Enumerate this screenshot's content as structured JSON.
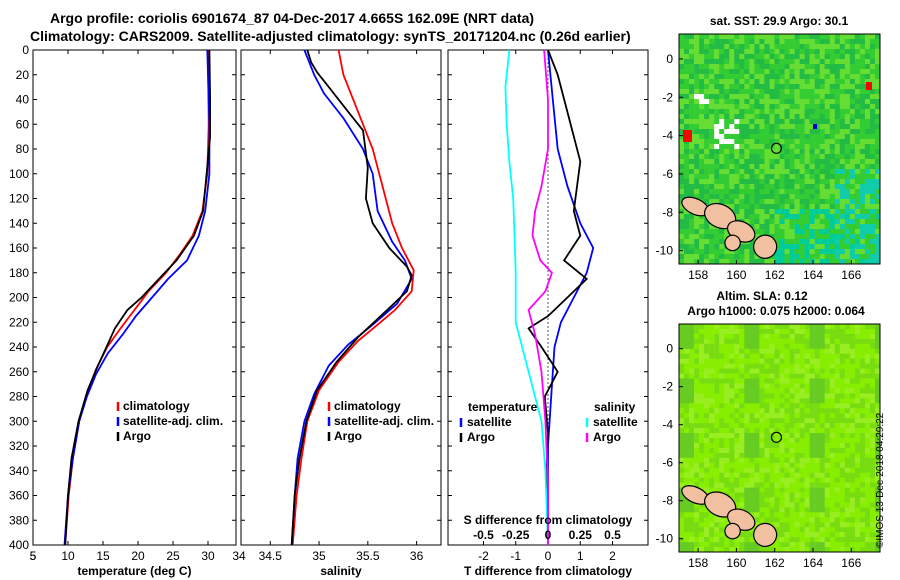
{
  "title_line1": "Argo profile: coriolis 6901674_87 04-Dec-2017 4.665S 162.09E (NRT data)",
  "title_line2": "Climatology: CARS2009. Satellite-adjusted climatology: synTS_20171204.nc (0.26d earlier)",
  "watermark": "©IMOS 13-Dec-2018 04:29:22",
  "colors": {
    "climatology": "#ff0000",
    "satellite": "#0000ff",
    "argo": "#000000",
    "cyan": "#00ffff",
    "magenta": "#ff00ff"
  },
  "chart_data": [
    {
      "type": "line",
      "name": "temperature",
      "xlabel": "temperature (deg C)",
      "ylabel": "",
      "xlim": [
        5,
        34
      ],
      "ylim": [
        400,
        0
      ],
      "xticks": [
        5,
        10,
        15,
        20,
        25,
        30
      ],
      "xticklabels": [
        "5",
        "10",
        "15",
        "20",
        "25",
        "30"
      ],
      "yticks": [
        0,
        20,
        40,
        60,
        80,
        100,
        120,
        140,
        160,
        180,
        200,
        220,
        240,
        260,
        280,
        300,
        320,
        340,
        360,
        380,
        400
      ],
      "yticklabels": [
        "0",
        "20",
        "40",
        "60",
        "80",
        "100",
        "120",
        "140",
        "160",
        "180",
        "200",
        "220",
        "240",
        "260",
        "280",
        "300",
        "320",
        "340",
        "360",
        "380",
        "400"
      ],
      "legend": [
        "climatology",
        "satellite-adj. clim.",
        "Argo"
      ],
      "series": [
        {
          "name": "climatology",
          "color": "red",
          "points": [
            [
              30.0,
              0
            ],
            [
              30.1,
              60
            ],
            [
              29.9,
              100
            ],
            [
              29.2,
              130
            ],
            [
              27.8,
              150
            ],
            [
              26.0,
              165
            ],
            [
              24.0,
              180
            ],
            [
              21.5,
              195
            ],
            [
              19.5,
              210
            ],
            [
              17.5,
              225
            ],
            [
              15.6,
              240
            ],
            [
              14.0,
              258
            ],
            [
              12.6,
              280
            ],
            [
              11.6,
              300
            ],
            [
              10.7,
              330
            ],
            [
              10.1,
              360
            ],
            [
              9.6,
              400
            ]
          ]
        },
        {
          "name": "satellite-adj. clim.",
          "color": "blue",
          "points": [
            [
              29.9,
              0
            ],
            [
              30.2,
              60
            ],
            [
              30.2,
              100
            ],
            [
              29.6,
              130
            ],
            [
              28.7,
              150
            ],
            [
              27.0,
              170
            ],
            [
              24.3,
              185
            ],
            [
              22.0,
              200
            ],
            [
              19.7,
              215
            ],
            [
              17.8,
              230
            ],
            [
              15.7,
              245
            ],
            [
              14.0,
              262
            ],
            [
              12.7,
              280
            ],
            [
              11.6,
              300
            ],
            [
              10.7,
              330
            ],
            [
              10.0,
              360
            ],
            [
              9.5,
              400
            ]
          ]
        },
        {
          "name": "Argo",
          "color": "black",
          "points": [
            [
              30.2,
              0
            ],
            [
              30.3,
              40
            ],
            [
              30.3,
              70
            ],
            [
              29.8,
              100
            ],
            [
              29.3,
              130
            ],
            [
              28.0,
              150
            ],
            [
              25.5,
              170
            ],
            [
              23.0,
              185
            ],
            [
              20.5,
              200
            ],
            [
              18.5,
              210
            ],
            [
              16.7,
              225
            ],
            [
              15.5,
              240
            ],
            [
              14.2,
              256
            ],
            [
              12.8,
              275
            ],
            [
              11.5,
              300
            ],
            [
              10.5,
              330
            ],
            [
              10.0,
              360
            ],
            [
              9.6,
              400
            ]
          ]
        }
      ]
    },
    {
      "type": "line",
      "name": "salinity",
      "xlabel": "salinity",
      "ylabel": "",
      "xlim": [
        34.2,
        36.25
      ],
      "ylim": [
        400,
        0
      ],
      "xticks": [
        34.5,
        35,
        35.5,
        36
      ],
      "xticklabels": [
        "34.5",
        "35",
        "35.5",
        "36"
      ],
      "legend": [
        "climatology",
        "satellite-adj. clim.",
        "Argo"
      ],
      "series": [
        {
          "name": "climatology",
          "color": "red",
          "points": [
            [
              35.2,
              0
            ],
            [
              35.25,
              20
            ],
            [
              35.35,
              40
            ],
            [
              35.45,
              60
            ],
            [
              35.55,
              80
            ],
            [
              35.65,
              110
            ],
            [
              35.75,
              140
            ],
            [
              35.85,
              160
            ],
            [
              35.97,
              178
            ],
            [
              35.95,
              195
            ],
            [
              35.78,
              210
            ],
            [
              35.6,
              222
            ],
            [
              35.4,
              235
            ],
            [
              35.2,
              252
            ],
            [
              35.0,
              275
            ],
            [
              34.88,
              300
            ],
            [
              34.82,
              330
            ],
            [
              34.77,
              360
            ],
            [
              34.73,
              400
            ]
          ]
        },
        {
          "name": "satellite-adj. clim.",
          "color": "blue",
          "points": [
            [
              34.85,
              0
            ],
            [
              34.95,
              20
            ],
            [
              35.05,
              35
            ],
            [
              35.25,
              55
            ],
            [
              35.45,
              80
            ],
            [
              35.55,
              100
            ],
            [
              35.6,
              130
            ],
            [
              35.75,
              155
            ],
            [
              35.88,
              170
            ],
            [
              35.95,
              185
            ],
            [
              35.8,
              205
            ],
            [
              35.55,
              222
            ],
            [
              35.3,
              238
            ],
            [
              35.1,
              255
            ],
            [
              34.95,
              278
            ],
            [
              34.85,
              300
            ],
            [
              34.78,
              330
            ],
            [
              34.75,
              360
            ],
            [
              34.72,
              400
            ]
          ]
        },
        {
          "name": "Argo",
          "color": "black",
          "points": [
            [
              34.88,
              0
            ],
            [
              34.92,
              10
            ],
            [
              34.98,
              18
            ],
            [
              35.1,
              30
            ],
            [
              35.3,
              50
            ],
            [
              35.45,
              65
            ],
            [
              35.5,
              95
            ],
            [
              35.48,
              120
            ],
            [
              35.55,
              140
            ],
            [
              35.72,
              160
            ],
            [
              35.9,
              175
            ],
            [
              35.95,
              182
            ],
            [
              35.9,
              195
            ],
            [
              35.7,
              210
            ],
            [
              35.4,
              232
            ],
            [
              35.18,
              252
            ],
            [
              34.98,
              275
            ],
            [
              34.87,
              300
            ],
            [
              34.8,
              330
            ],
            [
              34.75,
              360
            ],
            [
              34.72,
              400
            ]
          ]
        }
      ]
    },
    {
      "type": "line",
      "name": "difference",
      "xlabel": "T difference from climatology",
      "xlabel2": "S difference from climatology",
      "xlim": [
        -3.1,
        3.1
      ],
      "ylim": [
        400,
        0
      ],
      "xticks": [
        -2,
        -1,
        0,
        1,
        2
      ],
      "xticklabels": [
        "-2",
        "-1",
        "0",
        "1",
        "2"
      ],
      "sxticks": [
        -0.5,
        -0.25,
        0,
        0.25,
        0.5
      ],
      "sxticklabels": [
        "-0.5",
        "-0.25",
        "0",
        "0.25",
        "0.5"
      ],
      "legend_left_title": "temperature",
      "legend_right_title": "salinity",
      "legend_left": [
        "satellite",
        "Argo"
      ],
      "legend_right": [
        "satellite",
        "Argo"
      ],
      "series": [
        {
          "name": "T satellite",
          "color": "blue",
          "points": [
            [
              0.0,
              0
            ],
            [
              0.15,
              40
            ],
            [
              0.3,
              80
            ],
            [
              0.6,
              110
            ],
            [
              1.0,
              140
            ],
            [
              1.4,
              160
            ],
            [
              1.2,
              180
            ],
            [
              0.8,
              200
            ],
            [
              0.4,
              220
            ],
            [
              0.2,
              240
            ],
            [
              0.1,
              280
            ],
            [
              0.0,
              320
            ],
            [
              0.0,
              360
            ],
            [
              0.0,
              400
            ]
          ]
        },
        {
          "name": "T Argo",
          "color": "black",
          "points": [
            [
              0.0,
              0
            ],
            [
              0.3,
              20
            ],
            [
              0.6,
              50
            ],
            [
              1.0,
              90
            ],
            [
              0.8,
              130
            ],
            [
              1.0,
              150
            ],
            [
              0.5,
              170
            ],
            [
              1.2,
              185
            ],
            [
              0.6,
              200
            ],
            [
              0.0,
              215
            ],
            [
              -0.6,
              225
            ],
            [
              -0.2,
              240
            ],
            [
              0.3,
              260
            ],
            [
              -0.1,
              280
            ],
            [
              0.0,
              310
            ],
            [
              -0.05,
              340
            ],
            [
              0.0,
              400
            ]
          ]
        },
        {
          "name": "S satellite",
          "color": "cyan",
          "points": [
            [
              -0.3,
              0
            ],
            [
              -0.33,
              30
            ],
            [
              -0.32,
              60
            ],
            [
              -0.3,
              90
            ],
            [
              -0.27,
              120
            ],
            [
              -0.26,
              150
            ],
            [
              -0.25,
              180
            ],
            [
              -0.25,
              220
            ],
            [
              -0.15,
              260
            ],
            [
              -0.05,
              300
            ],
            [
              -0.02,
              340
            ],
            [
              0.0,
              400
            ]
          ]
        },
        {
          "name": "S Argo",
          "color": "magenta",
          "points": [
            [
              -0.03,
              0
            ],
            [
              0.0,
              40
            ],
            [
              0.0,
              80
            ],
            [
              -0.05,
              110
            ],
            [
              -0.1,
              130
            ],
            [
              -0.12,
              150
            ],
            [
              -0.06,
              170
            ],
            [
              0.03,
              180
            ],
            [
              -0.02,
              195
            ],
            [
              -0.15,
              210
            ],
            [
              -0.1,
              230
            ],
            [
              -0.05,
              260
            ],
            [
              -0.02,
              300
            ],
            [
              0.0,
              350
            ],
            [
              0.0,
              400
            ]
          ]
        }
      ]
    },
    {
      "type": "heatmap",
      "name": "sst-map",
      "title": "sat. SST: 29.9 Argo: 30.1",
      "xlim": [
        157,
        167.5
      ],
      "ylim": [
        -10.7,
        1.3
      ],
      "xticks": [
        158,
        160,
        162,
        164,
        166
      ],
      "xticklabels": [
        "158",
        "160",
        "162",
        "164",
        "166"
      ],
      "yticks": [
        0,
        -2,
        -4,
        -6,
        -8,
        -10
      ],
      "yticklabels": [
        "0",
        "-2",
        "-4",
        "-6",
        "-8",
        "-10"
      ],
      "marker": [
        162.09,
        -4.665
      ]
    },
    {
      "type": "heatmap",
      "name": "sla-map",
      "title": "Altim. SLA: 0.12",
      "subtitle": "Argo h1000: 0.075 h2000: 0.064",
      "xlim": [
        157,
        167.5
      ],
      "ylim": [
        -10.7,
        1.3
      ],
      "xticks": [
        158,
        160,
        162,
        164,
        166
      ],
      "xticklabels": [
        "158",
        "160",
        "162",
        "164",
        "166"
      ],
      "yticks": [
        0,
        -2,
        -4,
        -6,
        -8,
        -10
      ],
      "yticklabels": [
        "0",
        "-2",
        "-4",
        "-6",
        "-8",
        "-10"
      ],
      "marker": [
        162.09,
        -4.665
      ]
    }
  ]
}
